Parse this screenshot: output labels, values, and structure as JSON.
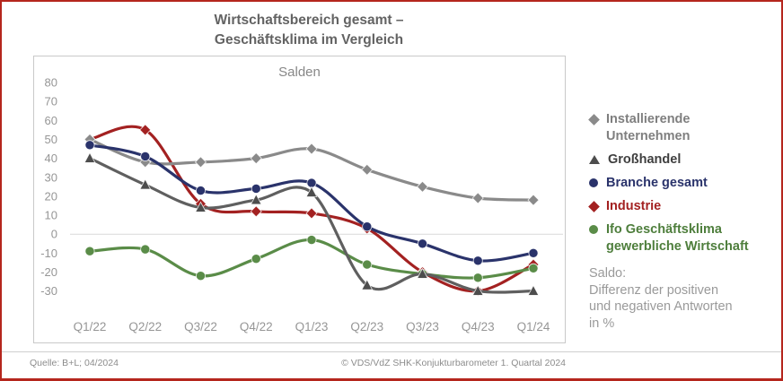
{
  "frame": {
    "border_color": "#b5261d"
  },
  "title": {
    "line1": "Wirtschaftsbereich gesamt –",
    "line2": "Geschäftsklima im Vergleich"
  },
  "legend": {
    "items": [
      {
        "label": "Installierende Unternehmen",
        "marker": "diamond",
        "color": "#8a8a8a",
        "text_color": "#7f7f7f"
      },
      {
        "label": "Großhandel",
        "marker": "triangle",
        "color": "#4d4d4d",
        "text_color": "#3f3f3f"
      },
      {
        "label": "Branche gesamt",
        "marker": "circle",
        "color": "#2a336b",
        "text_color": "#2a336b"
      },
      {
        "label": "Industrie",
        "marker": "diamond",
        "color": "#a32121",
        "text_color": "#a32121"
      },
      {
        "label": "Ifo Geschäftsklima gewerbliche Wirtschaft",
        "marker": "circle",
        "color": "#5a8c48",
        "text_color": "#4e7e3c"
      }
    ],
    "note_text": "Saldo:\nDifferenz der positiven\nund negativen Antworten\nin %"
  },
  "footer": {
    "source": "Quelle: B+L; 04/2024",
    "copyright": "© VDS/VdZ SHK-Konjukturbarometer 1. Quartal 2024"
  },
  "chart_data": {
    "type": "line",
    "title": "Salden",
    "subtitle_note": "Saldo: Differenz der positiven und negativen Antworten in %",
    "categories": [
      "Q1/22",
      "Q2/22",
      "Q3/22",
      "Q4/22",
      "Q1/23",
      "Q2/23",
      "Q3/23",
      "Q4/23",
      "Q1/24"
    ],
    "series": [
      {
        "name": "Installierende Unternehmen",
        "marker": "diamond",
        "color": "#8a8a8a",
        "values": [
          50,
          38,
          38,
          40,
          45,
          34,
          25,
          19,
          18
        ]
      },
      {
        "name": "Großhandel",
        "marker": "triangle",
        "color": "#5f5f5f",
        "marker_color": "#4d4d4d",
        "values": [
          40,
          26,
          14,
          18,
          22,
          -27,
          -21,
          -30,
          -30
        ]
      },
      {
        "name": "Branche gesamt",
        "marker": "circle",
        "color": "#2a336b",
        "values": [
          47,
          41,
          23,
          24,
          27,
          4,
          -5,
          -14,
          -10
        ]
      },
      {
        "name": "Industrie",
        "marker": "diamond",
        "color": "#a32121",
        "values": [
          50,
          55,
          16,
          12,
          11,
          3,
          -20,
          -30,
          -16
        ]
      },
      {
        "name": "Ifo Geschäftsklima gewerbliche Wirtschaft",
        "marker": "circle",
        "color": "#5a8c48",
        "values": [
          -9,
          -8,
          -22,
          -13,
          -3,
          -16,
          -21,
          -23,
          -18
        ]
      }
    ],
    "y_ticks": [
      80,
      70,
      60,
      50,
      40,
      30,
      20,
      10,
      0,
      -10,
      -20,
      -30
    ],
    "ylim": [
      -35,
      85
    ],
    "grid": "zero-line-only",
    "line_style": "smooth",
    "legend_position": "right"
  }
}
